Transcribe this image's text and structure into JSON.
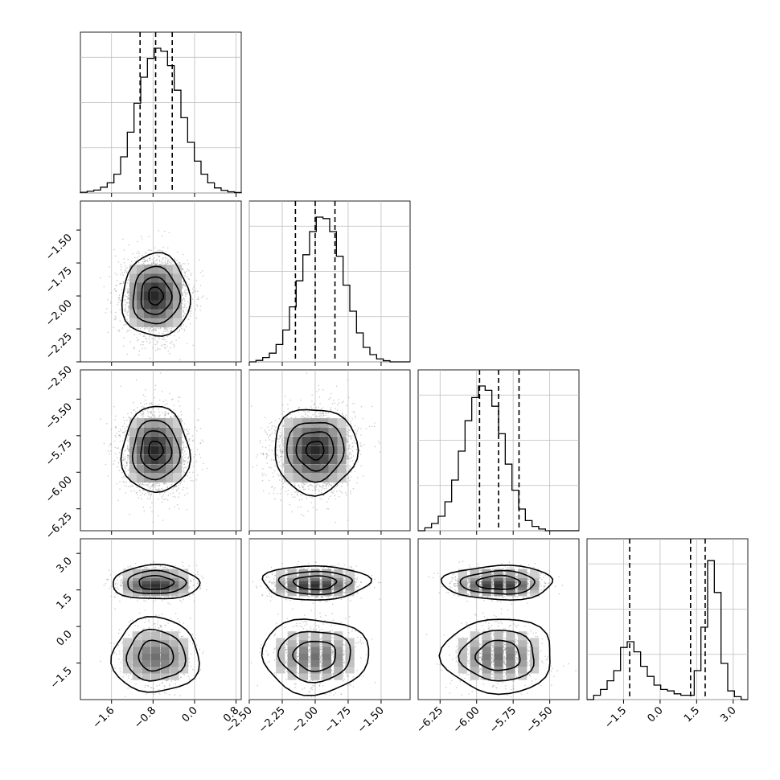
{
  "chart_data": {
    "type": "corner",
    "grid": true,
    "variables": [
      {
        "range": [
          -2.2,
          0.9
        ],
        "ticks": [
          -1.6,
          -0.8,
          0.0,
          0.8
        ],
        "tick_labels": [
          "−1.6",
          "−0.8",
          "0.0",
          "0.8"
        ],
        "quantiles": [
          -1.05,
          -0.75,
          -0.43
        ],
        "mean": -0.75,
        "sd": 0.31
      },
      {
        "range": [
          -2.5,
          -1.28
        ],
        "ticks": [
          -2.5,
          -2.25,
          -2.0,
          -1.75,
          -1.5
        ],
        "tick_labels": [
          "−2.50",
          "−2.25",
          "−2.00",
          "−1.75",
          "−1.50"
        ],
        "quantiles": [
          -2.15,
          -2.0,
          -1.85
        ],
        "mean": -2.0,
        "sd": 0.15
      },
      {
        "range": [
          -6.4,
          -5.3
        ],
        "ticks": [
          -6.25,
          -6.0,
          -5.75,
          -5.5
        ],
        "tick_labels": [
          "−6.25",
          "−6.00",
          "−5.75",
          "−5.50"
        ],
        "quantiles": [
          -5.98,
          -5.85,
          -5.71
        ],
        "mean": -5.85,
        "sd": 0.14
      },
      {
        "range": [
          -3.0,
          3.6
        ],
        "ticks": [
          -1.5,
          0.0,
          1.5,
          3.0
        ],
        "tick_labels": [
          "−1.5",
          "0.0",
          "1.5",
          "3.0"
        ],
        "quantiles": [
          -1.25,
          1.25,
          1.85
        ]
      }
    ],
    "var4_modes": [
      {
        "center": -1.2,
        "sd": 0.55,
        "weight": 0.4
      },
      {
        "center": 1.8,
        "sd": 0.25,
        "weight": 0.6
      }
    ],
    "hist_1d": [
      [
        0.005,
        0.012,
        0.02,
        0.04,
        0.07,
        0.13,
        0.25,
        0.42,
        0.62,
        0.8,
        0.93,
        1.0,
        0.98,
        0.88,
        0.71,
        0.52,
        0.35,
        0.22,
        0.13,
        0.07,
        0.035,
        0.018,
        0.008,
        0.003
      ],
      [
        0.0,
        0.01,
        0.03,
        0.06,
        0.12,
        0.22,
        0.38,
        0.56,
        0.74,
        0.9,
        1.0,
        0.99,
        0.9,
        0.73,
        0.53,
        0.35,
        0.2,
        0.1,
        0.05,
        0.02,
        0.008,
        0.0,
        0.0,
        0.0
      ],
      [
        0.0,
        0.02,
        0.05,
        0.1,
        0.2,
        0.35,
        0.55,
        0.76,
        0.92,
        1.0,
        0.97,
        0.86,
        0.67,
        0.46,
        0.28,
        0.15,
        0.07,
        0.03,
        0.012,
        0.0,
        0.0,
        0.0,
        0.0,
        0.0
      ],
      [
        0.0,
        0.03,
        0.07,
        0.13,
        0.2,
        0.36,
        0.4,
        0.33,
        0.23,
        0.16,
        0.1,
        0.07,
        0.06,
        0.04,
        0.03,
        0.03,
        0.2,
        0.5,
        0.96,
        0.74,
        0.25,
        0.06,
        0.02,
        0.0
      ]
    ]
  }
}
